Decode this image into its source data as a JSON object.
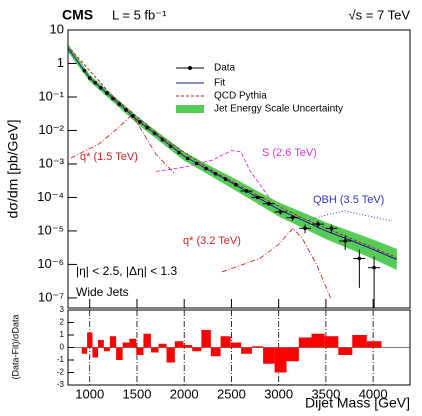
{
  "chart_data": [
    {
      "type": "line",
      "title": "CMS",
      "luminosity": "L = 5 fb⁻¹",
      "energy": "√s = 7 TeV",
      "y_label": "dσ/dm [pb/GeV]",
      "log_y": true,
      "xlim": [
        770,
        4390
      ],
      "ylim": [
        5e-08,
        10
      ],
      "yticks": [
        10,
        1,
        {
          "value": 0.1,
          "label": "10⁻¹"
        },
        {
          "value": 0.01,
          "label": "10⁻²"
        },
        {
          "value": 0.001,
          "label": "10⁻³"
        },
        {
          "value": 0.0001,
          "label": "10⁻⁴"
        },
        {
          "value": 1e-05,
          "label": "10⁻⁵"
        },
        {
          "value": 1e-06,
          "label": "10⁻⁶"
        },
        {
          "value": 1e-07,
          "label": "10⁻⁷"
        }
      ],
      "annotations": [
        "|η| < 2.5, |Δη| < 1.3",
        "Wide Jets"
      ],
      "series": [
        {
          "name": "Data",
          "style": "points",
          "color": "#000000",
          "x": [
            944,
            1000,
            1058,
            1118,
            1181,
            1246,
            1313,
            1383,
            1455,
            1530,
            1607,
            1687,
            1770,
            1856,
            1945,
            2037,
            2132,
            2231,
            2332,
            2438,
            2546,
            2659,
            2775,
            2895,
            3019,
            3147,
            3279,
            3416,
            3558,
            3704,
            3854,
            4010
          ],
          "values": [
            0.61,
            0.37,
            0.266,
            0.188,
            0.131,
            0.09,
            0.061,
            0.041,
            0.027,
            0.018,
            0.0122,
            0.0081,
            0.0053,
            0.0034,
            0.0022,
            0.00146,
            0.00104,
            0.00073,
            0.00051,
            0.00035,
            0.00024,
            0.000156,
            0.0001,
            6.5e-05,
            3.7e-05,
            2.5e-05,
            1.2e-05,
            1.6e-05,
            1.2e-05,
            5e-06,
            1.5e-06,
            8e-07
          ],
          "errors": [
            null,
            null,
            null,
            null,
            null,
            null,
            null,
            null,
            null,
            null,
            null,
            null,
            null,
            null,
            null,
            null,
            null,
            null,
            null,
            null,
            null,
            1.5e-05,
            1.1e-05,
            8e-06,
            6e-06,
            5e-06,
            3.5e-06,
            4e-06,
            3.5e-06,
            2.3e-06,
            1.3e-06,
            9e-07
          ]
        },
        {
          "name": "Fit",
          "style": "line",
          "color": "#1a1a9c",
          "x": [
            770,
            800,
            1000,
            1250,
            1500,
            1750,
            2000,
            2250,
            2500,
            2750,
            3000,
            3250,
            3500,
            3750,
            4000,
            4250
          ],
          "values": [
            2.9,
            2.2,
            0.37,
            0.089,
            0.021,
            0.0059,
            0.0017,
            0.00068,
            0.00028,
            0.00011,
            4.4e-05,
            2.1e-05,
            1e-05,
            5.4e-06,
            2.8e-06,
            1.4e-06
          ]
        },
        {
          "name": "QCD Pythia",
          "style": "dashed",
          "color": "#b22222",
          "x": [
            800,
            1250,
            1750,
            2250,
            2750,
            3250,
            3750,
            4250
          ],
          "values": [
            2.6,
            0.1,
            0.0066,
            0.00076,
            0.000125,
            2.4e-05,
            6.2e-06,
            1.6e-06
          ]
        },
        {
          "name": "Jet Energy Scale Uncertainty",
          "style": "band",
          "color": "#55cc55",
          "x": [
            770,
            800,
            1000,
            1250,
            1500,
            1750,
            2000,
            2250,
            2500,
            2750,
            3000,
            3250,
            3500,
            3750,
            4000,
            4250
          ],
          "upper": [
            3.8,
            2.9,
            0.46,
            0.11,
            0.027,
            0.0077,
            0.0023,
            0.00095,
            0.00041,
            0.00017,
            7.2e-05,
            3.6e-05,
            1.8e-05,
            1e-05,
            5.5e-06,
            2.9e-06
          ],
          "lower": [
            2.2,
            1.7,
            0.29,
            0.069,
            0.016,
            0.0045,
            0.00125,
            0.00049,
            0.00019,
            7.2e-05,
            2.7e-05,
            1.25e-05,
            5.7e-06,
            2.9e-06,
            1.45e-06,
            6.8e-07
          ]
        }
      ],
      "signals": [
        {
          "label": "q* (1.5 TeV)",
          "color": "#cc2222",
          "dash": "5,2,1,2",
          "x": [
            800,
            1100,
            1300,
            1450,
            1550,
            1700,
            1900
          ],
          "values": [
            0.0015,
            0.004,
            0.012,
            0.03,
            0.01,
            0.002,
            0.0005
          ]
        },
        {
          "label": "S (2.6 TeV)",
          "color": "#dd33dd",
          "dash": "4,2",
          "x": [
            1700,
            2000,
            2300,
            2500,
            2600,
            2700,
            2900
          ],
          "values": [
            0.0006,
            0.0008,
            0.0013,
            0.0025,
            0.0023,
            0.0006,
            0.0001
          ]
        },
        {
          "label": "QBH (3.5 TeV)",
          "color": "#3333cc",
          "dash": "1,2",
          "x": [
            3300,
            3500,
            3700,
            3900,
            4200
          ],
          "values": [
            2e-05,
            3e-05,
            4e-05,
            3e-05,
            2e-05
          ]
        },
        {
          "label": "q* (3.2 TeV)",
          "color": "#cc2222",
          "dash": "5,2,1,2",
          "x": [
            2400,
            2800,
            3000,
            3150,
            3250,
            3400,
            3550
          ],
          "values": [
            6e-07,
            1.5e-06,
            4e-06,
            1.2e-05,
            6e-06,
            1e-06,
            1e-07
          ]
        }
      ]
    },
    {
      "type": "bar",
      "y_label": "(Data-Fit)/σData",
      "x_label": "Dijet Mass [GeV]",
      "color": "#ff0000",
      "xlim": [
        770,
        4390
      ],
      "ylim": [
        -3,
        3
      ],
      "xticks": [
        1000,
        1500,
        2000,
        2500,
        3000,
        3500,
        4000
      ],
      "yticks": [
        3,
        2,
        1,
        0,
        -1,
        -2,
        -3
      ],
      "x": [
        944,
        1000,
        1058,
        1118,
        1181,
        1246,
        1313,
        1383,
        1455,
        1530,
        1607,
        1687,
        1770,
        1856,
        1945,
        2037,
        2132,
        2231,
        2332,
        2438,
        2546,
        2659,
        2775,
        2895,
        3019,
        3147,
        3279,
        3416,
        3558,
        3704,
        3854,
        4010
      ],
      "values": [
        -0.5,
        1.2,
        -0.8,
        0.6,
        -0.3,
        0.9,
        -1.0,
        0.4,
        0.7,
        -0.6,
        1.1,
        -0.4,
        0.3,
        -1.2,
        0.5,
        0.2,
        -0.3,
        1.4,
        -0.7,
        0.9,
        0.4,
        -0.5,
        0.1,
        -1.3,
        -2.0,
        -1.1,
        0.8,
        1.1,
        0.9,
        -0.6,
        1.0,
        0.5
      ]
    }
  ]
}
